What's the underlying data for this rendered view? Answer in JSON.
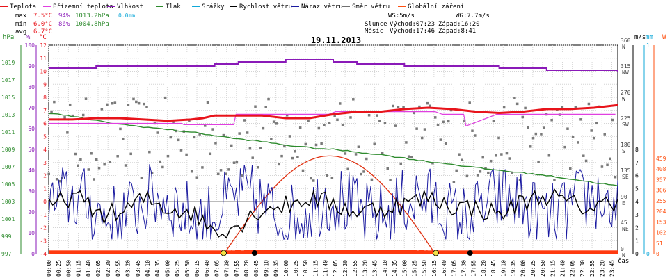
{
  "legend": [
    {
      "label": "Teplota",
      "color": "#e8141b"
    },
    {
      "label": "Přízemní teplota",
      "color": "#e040e0"
    },
    {
      "label": "Vlhkost",
      "color": "#8a1ab8"
    },
    {
      "label": "Tlak",
      "color": "#2e8b2e"
    },
    {
      "label": "Srážky",
      "color": "#10a8d8"
    },
    {
      "label": "Rychlost větru",
      "color": "#000000"
    },
    {
      "label": "Náraz větru",
      "color": "#1a1aa0"
    },
    {
      "label": "Směr větru",
      "color": "#707070"
    },
    {
      "label": "Globální záření",
      "color": "#ff5010"
    }
  ],
  "stats": {
    "max": {
      "label": "max",
      "temp": "7.5°C",
      "hum": "94%",
      "press": "1013.2hPa",
      "rain": "0.0mm"
    },
    "min": {
      "label": "min",
      "temp": "6.0°C",
      "hum": "86%",
      "press": "1004.8hPa"
    },
    "avg": {
      "label": "avg",
      "temp": "6.7°C"
    }
  },
  "wind_info": {
    "ws": "WS:5m/s",
    "wg": "WG:7.7m/s"
  },
  "sun": {
    "label": "Slunce",
    "rise": "Východ:07:23",
    "set": "Západ:16:20"
  },
  "moon": {
    "label": "Měsíc",
    "rise": "Východ:17:46",
    "set": "Západ:8:41"
  },
  "date": "19.11.2013",
  "units": {
    "hpa": "hPa",
    "pct": "%",
    "degc": "°C",
    "ms": "m/s",
    "mm": "mm",
    "w": "W"
  },
  "xlabel": "čas",
  "chart_data": {
    "type": "line",
    "title": "19.11.2013",
    "xlabel": "čas",
    "x_ticks": [
      "00:00",
      "00:25",
      "00:50",
      "01:15",
      "01:40",
      "02:05",
      "02:30",
      "02:55",
      "03:20",
      "03:45",
      "04:10",
      "04:35",
      "05:00",
      "05:25",
      "05:50",
      "06:15",
      "06:40",
      "07:05",
      "07:30",
      "07:55",
      "08:20",
      "08:45",
      "09:10",
      "09:35",
      "10:00",
      "10:25",
      "10:50",
      "11:15",
      "11:40",
      "12:05",
      "12:30",
      "12:55",
      "13:20",
      "13:45",
      "14:10",
      "14:35",
      "15:00",
      "15:25",
      "15:50",
      "16:15",
      "16:40",
      "17:05",
      "17:30",
      "17:55",
      "18:20",
      "18:45",
      "19:10",
      "19:35",
      "20:00",
      "20:25",
      "20:50",
      "21:15",
      "21:40",
      "22:05",
      "22:30",
      "22:55",
      "23:20",
      "23:45"
    ],
    "axes": {
      "pressure_hpa": {
        "ticks": [
          997,
          999,
          1001,
          1003,
          1005,
          1007,
          1009,
          1011,
          1013,
          1015,
          1017,
          1019
        ],
        "range": [
          997,
          1021
        ]
      },
      "humidity_pct": {
        "ticks": [
          0,
          10,
          20,
          30,
          40,
          50,
          60,
          70,
          80,
          90,
          100
        ],
        "range": [
          0,
          100
        ]
      },
      "temp_c": {
        "ticks": [
          -4,
          -3,
          -2,
          -1,
          0,
          1,
          2,
          3,
          4,
          5,
          6,
          7,
          8,
          9,
          10,
          11,
          12
        ],
        "range": [
          -4,
          12
        ]
      },
      "wind_dir": {
        "ticks": [
          "0 N",
          "45 NE",
          "90 E",
          "135 SE",
          "180 S",
          "225 SW",
          "270 W",
          "315 NW",
          "360 N"
        ]
      },
      "wind_ms": {
        "ticks": [
          0,
          1,
          2,
          3,
          4,
          5,
          6,
          7,
          8
        ]
      },
      "rain_mm": {
        "ticks": [
          0,
          1
        ]
      },
      "radiation_w": {
        "ticks": [
          0,
          51,
          102,
          153,
          204,
          255,
          306,
          357,
          408,
          459
        ]
      }
    },
    "series": [
      {
        "name": "Teplota",
        "axis": "temp_c",
        "x": [
          0,
          1,
          2,
          3,
          4,
          5,
          6,
          6.5,
          7,
          7.5,
          8,
          9,
          10,
          11,
          12,
          13,
          14,
          15,
          16,
          17,
          18,
          19,
          20,
          21,
          22,
          23,
          24
        ],
        "values": [
          6.3,
          6.3,
          6.4,
          6.4,
          6.3,
          6.2,
          6.3,
          6.4,
          6.6,
          6.6,
          6.6,
          6.6,
          6.4,
          6.4,
          6.7,
          6.9,
          6.9,
          7.1,
          7.2,
          7.1,
          6.9,
          6.8,
          6.9,
          7.1,
          7.1,
          7.2,
          7.4
        ]
      },
      {
        "name": "Přízemní teplota",
        "axis": "temp_c",
        "x": [
          0,
          5.6,
          5.7,
          7.8,
          7.9,
          11.8,
          12.1,
          13.3,
          13.4,
          16.3,
          16.6,
          17.5,
          17.6,
          18.9,
          19.6,
          21.4,
          23.9
        ],
        "values": [
          6.0,
          6.0,
          5.9,
          5.9,
          6.7,
          6.7,
          6.9,
          6.9,
          6.9,
          6.9,
          6.7,
          6.7,
          5.8,
          6.7,
          6.7,
          6.7,
          6.7
        ]
      },
      {
        "name": "Vlhkost",
        "axis": "humidity_pct",
        "x": [
          0,
          1,
          2,
          3,
          4,
          5,
          6,
          7,
          8,
          9,
          10,
          11,
          12,
          13,
          14,
          15,
          16,
          17,
          18,
          19,
          20,
          21,
          22,
          23,
          24
        ],
        "values": [
          89,
          89,
          90,
          90,
          90,
          90,
          90,
          91,
          92,
          92,
          93,
          93,
          92,
          91,
          91,
          90,
          90,
          90,
          90,
          89,
          89,
          88,
          88,
          88,
          87
        ]
      },
      {
        "name": "Tlak",
        "axis": "pressure_hpa",
        "x": [
          0,
          1,
          2,
          3,
          4,
          5,
          6,
          7,
          8,
          9,
          10,
          11,
          12,
          13,
          14,
          15,
          16,
          17,
          18,
          19,
          20,
          21,
          22,
          23,
          24
        ],
        "values": [
          1013.2,
          1012.8,
          1012.3,
          1011.9,
          1011.6,
          1011.3,
          1011.0,
          1010.6,
          1010.2,
          1009.9,
          1009.5,
          1009.2,
          1009.0,
          1008.7,
          1008.4,
          1008.0,
          1007.6,
          1007.3,
          1006.9,
          1006.6,
          1006.3,
          1006.0,
          1005.6,
          1005.2,
          1004.8
        ]
      },
      {
        "name": "Rychlost větru",
        "axis": "temp_c",
        "x": [
          0,
          1,
          2,
          3,
          4,
          5,
          6,
          7,
          8,
          9,
          10,
          11,
          12,
          13,
          14,
          15,
          16,
          17,
          18,
          19,
          20,
          21,
          22,
          23,
          24
        ],
        "values": [
          -0.5,
          0.5,
          -0.8,
          -1.0,
          0.2,
          -0.5,
          -0.8,
          -2.2,
          -1.8,
          -0.5,
          -0.3,
          0.3,
          -0.2,
          -0.8,
          -0.5,
          -0.2,
          0.3,
          -0.3,
          -0.5,
          -1.0,
          0.0,
          0.5,
          -0.2,
          -0.5,
          0.2
        ]
      },
      {
        "name": "Globální záření",
        "axis": "temp_c",
        "x": [
          7.4,
          8,
          8.5,
          9,
          9.5,
          10,
          10.5,
          11,
          11.5,
          12,
          12.5,
          13,
          13.5,
          14,
          14.5,
          15,
          15.5,
          16,
          16.3
        ],
        "values": [
          -3.9,
          -3.7,
          -3.5,
          -3.3,
          -3.0,
          -3.2,
          -2.8,
          -2.9,
          -2.5,
          -3.0,
          -2.9,
          -3.3,
          -3.1,
          -2.8,
          -3.3,
          -3.5,
          -3.6,
          -3.8,
          -3.9
        ]
      },
      {
        "name": "Theoretical radiation",
        "axis": "temp_c",
        "x": [
          7.4,
          8,
          9,
          10,
          11,
          11.9,
          13,
          14,
          15,
          16.3
        ],
        "values": [
          -4,
          -1.6,
          0.8,
          2.4,
          3.3,
          3.5,
          3.1,
          1.8,
          -0.4,
          -4
        ]
      }
    ]
  }
}
